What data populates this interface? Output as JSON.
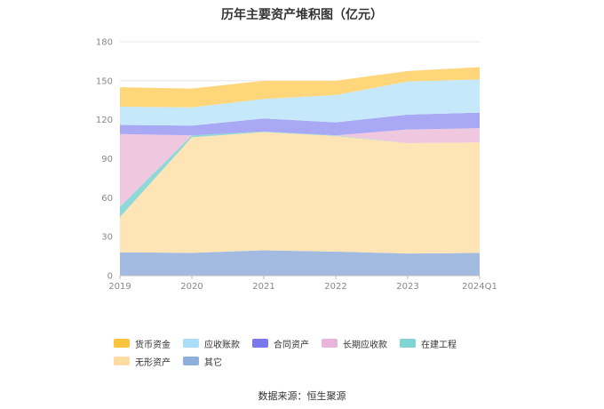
{
  "chart_data": {
    "type": "area",
    "stacked": true,
    "title": "历年主要资产堆积图（亿元）",
    "xlabel": "",
    "ylabel": "",
    "categories": [
      "2019",
      "2020",
      "2021",
      "2022",
      "2023",
      "2024Q1"
    ],
    "ylim": [
      0,
      180
    ],
    "yticks": [
      0,
      30,
      60,
      90,
      120,
      150,
      180
    ],
    "grid": true,
    "legend_position": "bottom",
    "series": [
      {
        "name": "其它",
        "color": "#a3bbe0",
        "values": [
          18,
          17.5,
          19.5,
          18.5,
          17,
          17.5
        ]
      },
      {
        "name": "无形资产",
        "color": "#ffe4b5",
        "values": [
          27,
          89,
          91,
          89,
          85,
          85
        ]
      },
      {
        "name": "在建工程",
        "color": "#8fd8d8",
        "values": [
          8,
          1.5,
          0.5,
          0.5,
          0,
          0
        ]
      },
      {
        "name": "长期应收款",
        "color": "#efc8e0",
        "values": [
          56,
          0,
          0,
          0,
          10.5,
          11
        ]
      },
      {
        "name": "合同资产",
        "color": "#a8a8f5",
        "values": [
          7,
          7.5,
          10,
          10,
          11.5,
          12
        ]
      },
      {
        "name": "应收账款",
        "color": "#c5e9fb",
        "values": [
          14,
          14,
          15,
          21,
          25.5,
          25.5
        ]
      },
      {
        "name": "货币资金",
        "color": "#ffd67a",
        "values": [
          15,
          14.5,
          14,
          11,
          8,
          9.5
        ]
      }
    ]
  },
  "legend": [
    {
      "label": "货币资金",
      "color": "#fcc43c"
    },
    {
      "label": "应收账款",
      "color": "#a9def9"
    },
    {
      "label": "合同资产",
      "color": "#7a78ea"
    },
    {
      "label": "长期应收款",
      "color": "#e8b6da"
    },
    {
      "label": "在建工程",
      "color": "#7fd4d4"
    },
    {
      "label": "无形资产",
      "color": "#ffdca3"
    },
    {
      "label": "其它",
      "color": "#8eaedc"
    }
  ],
  "source": "数据来源：恒生聚源"
}
